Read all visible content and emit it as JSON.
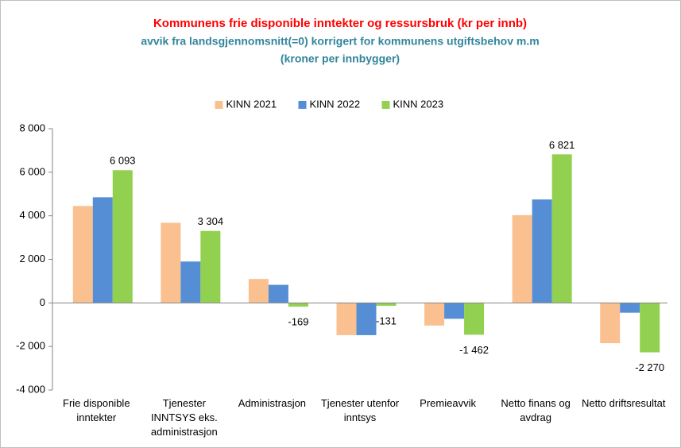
{
  "chart_data": {
    "type": "bar",
    "title": "Kommunens frie disponible inntekter og ressursbruk (kr per innb)",
    "subtitle": "avvik fra landsgjennomsnitt(=0) korrigert for kommunens utgiftsbehov m.m",
    "subtitle2": "(kroner per innbygger)",
    "categories": [
      "Frie disponible inntekter",
      "Tjenester INNTSYS eks. administrasjon",
      "Administrasjon",
      "Tjenester utenfor inntsys",
      "Premieavvik",
      "Netto finans og avdrag",
      "Netto driftsresultat"
    ],
    "series": [
      {
        "name": "KINN 2021",
        "color": "#FAC090",
        "values": [
          4450,
          3680,
          1100,
          -1480,
          -1040,
          4030,
          -1850
        ]
      },
      {
        "name": "KINN 2022",
        "color": "#558ED5",
        "values": [
          4850,
          1900,
          830,
          -1480,
          -730,
          4750,
          -450
        ]
      },
      {
        "name": "KINN 2023",
        "color": "#92D050",
        "values": [
          6093,
          3304,
          -169,
          -131,
          -1462,
          6821,
          -2270
        ],
        "value_labels": [
          "6 093",
          "3 304",
          "-169",
          "-131",
          "-1 462",
          "6 821",
          "-2 270"
        ]
      }
    ],
    "ylim": [
      -4000,
      8000
    ],
    "yticks": [
      {
        "value": -4000,
        "label": "-4 000"
      },
      {
        "value": -2000,
        "label": "-2 000"
      },
      0,
      {
        "value": 2000,
        "label": "2 000"
      },
      {
        "value": 4000,
        "label": "4 000"
      },
      {
        "value": 6000,
        "label": "6 000"
      },
      {
        "value": 8000,
        "label": "8 000"
      }
    ],
    "legend": "top",
    "grid": false
  }
}
